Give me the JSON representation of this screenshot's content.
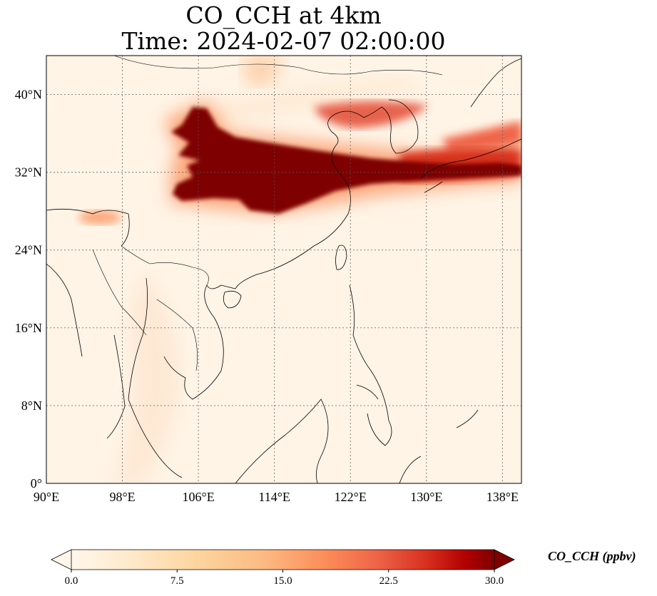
{
  "title_line1": "CO_CCH at 4km",
  "title_line2": "Time: 2024-02-07 02:00:00",
  "map": {
    "lon_range": [
      90,
      140
    ],
    "lat_range": [
      0,
      44
    ],
    "lon_ticks": [
      {
        "value": 90,
        "label": "90°E"
      },
      {
        "value": 98,
        "label": "98°E"
      },
      {
        "value": 106,
        "label": "106°E"
      },
      {
        "value": 114,
        "label": "114°E"
      },
      {
        "value": 122,
        "label": "122°E"
      },
      {
        "value": 130,
        "label": "130°E"
      },
      {
        "value": 138,
        "label": "138°E"
      }
    ],
    "lat_ticks": [
      {
        "value": 0,
        "label": "0°"
      },
      {
        "value": 8,
        "label": "8°N"
      },
      {
        "value": 16,
        "label": "16°N"
      },
      {
        "value": 24,
        "label": "24°N"
      },
      {
        "value": 32,
        "label": "32°N"
      },
      {
        "value": 40,
        "label": "40°N"
      }
    ],
    "gridlines": true,
    "colormap": "OrRd",
    "colors": {
      "low": "#fff7ec",
      "mid": "#fdbb84",
      "high": "#7f0000",
      "coast": "#000000"
    }
  },
  "colorbar": {
    "label": "CO_CCH (ppbv)",
    "ticks": [
      "0.0",
      "7.5",
      "15.0",
      "22.5",
      "30.0"
    ],
    "range": [
      0,
      30
    ],
    "extend": "both"
  }
}
